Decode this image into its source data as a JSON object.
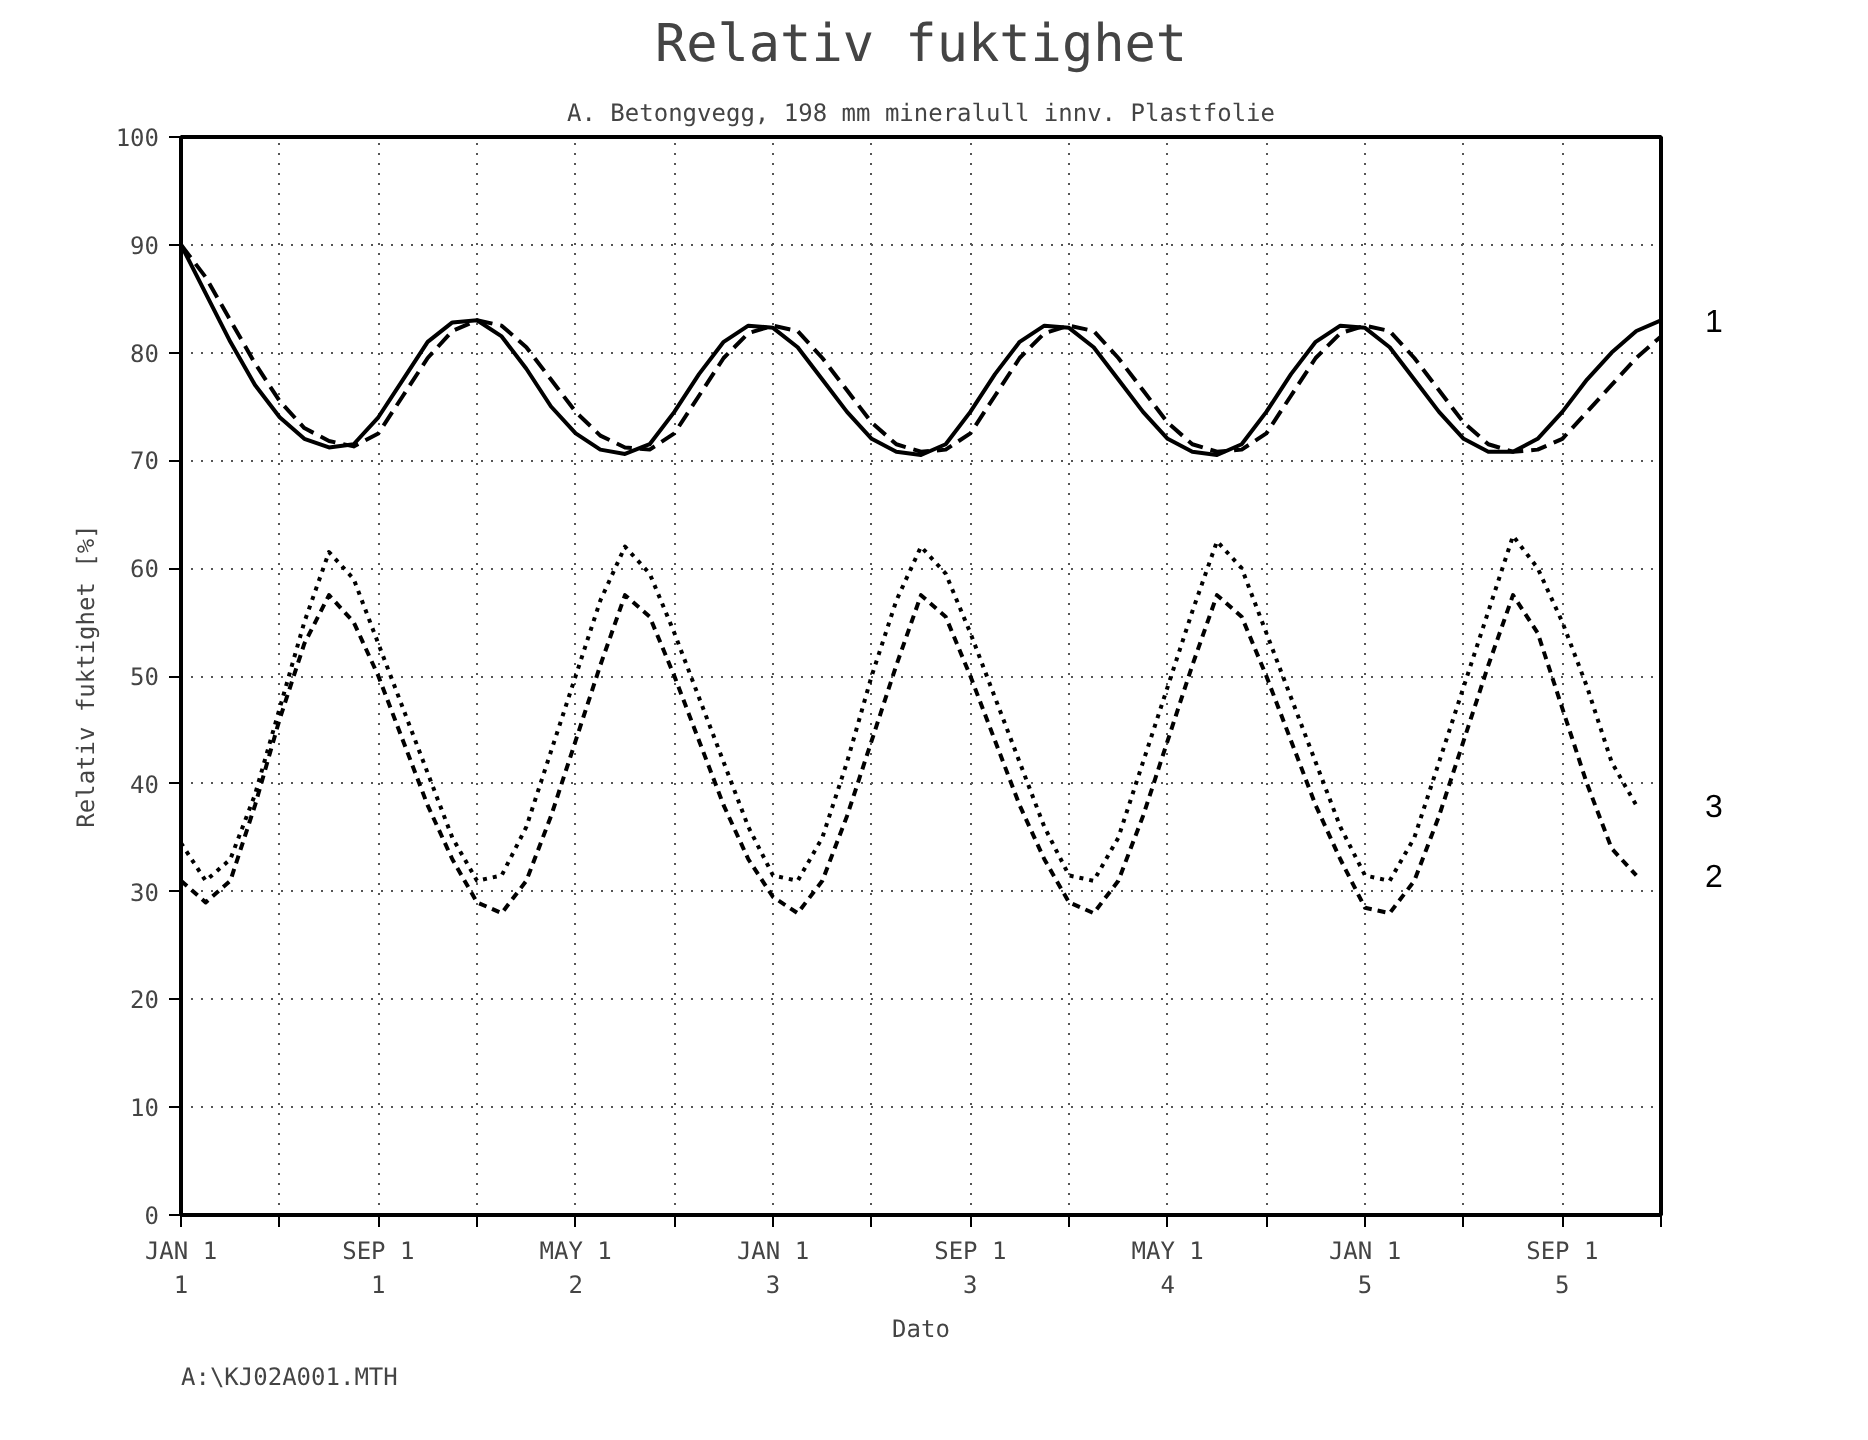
{
  "chart_data": {
    "type": "line",
    "title": "Relativ fuktighet",
    "subtitle": "A. Betongvegg, 198 mm mineralull innv. Plastfolie",
    "xlabel": "Dato",
    "ylabel": "Relativ fuktighet [%]",
    "annotations": [
      "A:\\KJ02A001.MTH"
    ],
    "categories": [
      "JAN 1\n1",
      null,
      null,
      null,
      null,
      null,
      null,
      null,
      "SEP 1\n1",
      null,
      null,
      null,
      null,
      null,
      null,
      null,
      "MAY 1\n2",
      null,
      null,
      null,
      null,
      null,
      null,
      null,
      "JAN 1\n3",
      null,
      null,
      null,
      null,
      null,
      null,
      null,
      "SEP 1\n3",
      null,
      null,
      null,
      null,
      null,
      null,
      null,
      "MAY 1\n4",
      null,
      null,
      null,
      null,
      null,
      null,
      null,
      "JAN 1\n5",
      null,
      null,
      null,
      null,
      null,
      null,
      null,
      "SEP 1\n5",
      null,
      null,
      null,
      null
    ],
    "ylim": [
      0,
      100
    ],
    "yticks": [
      0,
      10,
      20,
      30,
      40,
      50,
      60,
      70,
      80,
      90,
      100
    ],
    "grid": true,
    "marker": "none",
    "series": [
      {
        "name": "1",
        "color": "#000000",
        "line_style": "solid",
        "values": [
          90,
          85.5,
          81,
          77,
          74,
          72,
          71.2,
          71.5,
          74,
          77.5,
          81,
          82.8,
          83,
          81.5,
          78.5,
          75,
          72.5,
          71,
          70.6,
          71.5,
          74.5,
          78,
          81,
          82.5,
          82.3,
          80.5,
          77.5,
          74.5,
          72,
          70.8,
          70.5,
          71.5,
          74.5,
          78,
          81,
          82.5,
          82.3,
          80.5,
          77.5,
          74.5,
          72,
          70.8,
          70.5,
          71.5,
          74.5,
          78,
          81,
          82.5,
          82.3,
          80.5,
          77.5,
          74.5,
          72,
          70.8,
          70.8,
          72,
          74.5,
          77.5,
          80,
          82,
          83
        ]
      },
      {
        "color": "#000000",
        "line_style": "dashed",
        "values": [
          90,
          87,
          83,
          79,
          75.5,
          73,
          71.8,
          71.3,
          72.5,
          76,
          79.5,
          82,
          83,
          82.5,
          80.5,
          77.5,
          74.5,
          72.3,
          71.2,
          71,
          72.5,
          76,
          79.5,
          81.8,
          82.5,
          82,
          79.5,
          76.5,
          73.5,
          71.5,
          70.8,
          71,
          72.5,
          76,
          79.5,
          81.8,
          82.5,
          82,
          79.5,
          76.5,
          73.5,
          71.5,
          70.8,
          71,
          72.5,
          76,
          79.5,
          81.8,
          82.5,
          82,
          79.5,
          76.5,
          73.5,
          71.5,
          70.8,
          71,
          72,
          74.5,
          77,
          79.5,
          81.5
        ]
      },
      {
        "name": "2",
        "color": "#000000",
        "line_style": "dashed",
        "values": [
          31,
          29,
          31,
          38,
          46,
          53,
          57.5,
          55,
          50,
          44,
          38,
          33,
          29,
          28,
          31,
          37,
          44,
          51,
          57.5,
          55.5,
          50,
          44,
          38,
          33,
          29.5,
          28,
          31,
          37,
          44,
          51,
          57.5,
          55.5,
          50,
          44,
          38,
          33,
          29,
          28,
          31,
          37,
          44,
          51,
          57.5,
          55.5,
          50,
          44,
          38,
          33,
          28.5,
          28,
          31,
          37,
          44,
          51,
          57.5,
          54,
          47,
          40,
          34,
          31.5,
          null
        ]
      },
      {
        "name": "3",
        "color": "#000000",
        "line_style": "dotted",
        "values": [
          34.5,
          31,
          33,
          39,
          47,
          55,
          61.5,
          59,
          53,
          47,
          41,
          35,
          31,
          31.5,
          36,
          43,
          50,
          57,
          62,
          59.5,
          54,
          48,
          42,
          36,
          31.5,
          31,
          35,
          42,
          50,
          57,
          62,
          59.5,
          54,
          48,
          42,
          36,
          31.5,
          31,
          35,
          42,
          49,
          56,
          62.5,
          60,
          54,
          48,
          42,
          36,
          31.5,
          31,
          35,
          42,
          49,
          56,
          63,
          60,
          55,
          49,
          42,
          38,
          null
        ]
      }
    ]
  }
}
